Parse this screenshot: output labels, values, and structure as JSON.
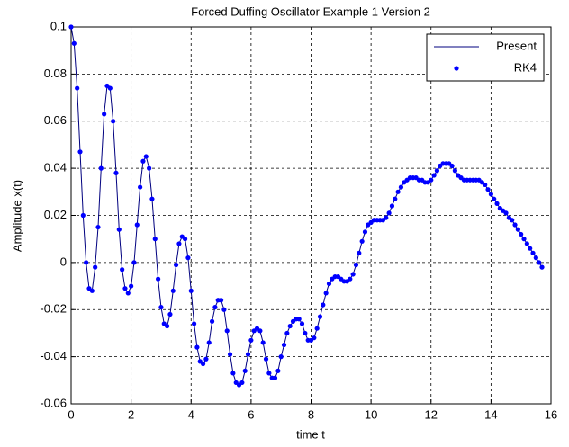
{
  "chart_data": {
    "type": "line",
    "title": "Forced Duffing Oscillator Example 1 Version 2",
    "xlabel": "time t",
    "ylabel": "Amplitude x(t)",
    "x": [
      0,
      0.1,
      0.2,
      0.3,
      0.4,
      0.5,
      0.6,
      0.7,
      0.8,
      0.9,
      1,
      1.1,
      1.2,
      1.3,
      1.4,
      1.5,
      1.6,
      1.7,
      1.8,
      1.9,
      2,
      2.1,
      2.2,
      2.3,
      2.4,
      2.5,
      2.6,
      2.7,
      2.8,
      2.9,
      3,
      3.1,
      3.2,
      3.3,
      3.4,
      3.5,
      3.6,
      3.7,
      3.8,
      3.9,
      4,
      4.1,
      4.2,
      4.3,
      4.4,
      4.5,
      4.6,
      4.7,
      4.8,
      4.9,
      5,
      5.1,
      5.2,
      5.3,
      5.4,
      5.5,
      5.6,
      5.7,
      5.8,
      5.9,
      6,
      6.1,
      6.2,
      6.3,
      6.4,
      6.5,
      6.6,
      6.7,
      6.8,
      6.9,
      7,
      7.1,
      7.2,
      7.3,
      7.4,
      7.5,
      7.6,
      7.7,
      7.8,
      7.9,
      8,
      8.1,
      8.2,
      8.3,
      8.4,
      8.5,
      8.6,
      8.7,
      8.8,
      8.9,
      9,
      9.1,
      9.2,
      9.3,
      9.4,
      9.5,
      9.6,
      9.7,
      9.8,
      9.9,
      10,
      10.1,
      10.2,
      10.3,
      10.4,
      10.5,
      10.6,
      10.7,
      10.8,
      10.9,
      11,
      11.1,
      11.2,
      11.3,
      11.4,
      11.5,
      11.6,
      11.7,
      11.8,
      11.9,
      12,
      12.1,
      12.2,
      12.3,
      12.4,
      12.5,
      12.6,
      12.7,
      12.8,
      12.9,
      13,
      13.1,
      13.2,
      13.3,
      13.4,
      13.5,
      13.6,
      13.7,
      13.8,
      13.9,
      14,
      14.1,
      14.2,
      14.3,
      14.4,
      14.5,
      14.6,
      14.7,
      14.8,
      14.9,
      15,
      15.1,
      15.2,
      15.3,
      15.4,
      15.5,
      15.6,
      15.7
    ],
    "series": [
      {
        "name": "Present",
        "color": "#00007f",
        "mode": "line",
        "values": [
          0.1,
          0.093,
          0.074,
          0.047,
          0.02,
          0.0,
          -0.011,
          -0.012,
          -0.002,
          0.015,
          0.04,
          0.063,
          0.075,
          0.074,
          0.06,
          0.038,
          0.014,
          -0.003,
          -0.011,
          -0.013,
          -0.01,
          0.0,
          0.016,
          0.032,
          0.043,
          0.045,
          0.04,
          0.027,
          0.01,
          -0.007,
          -0.019,
          -0.026,
          -0.027,
          -0.022,
          -0.012,
          -0.001,
          0.008,
          0.011,
          0.01,
          0.002,
          -0.012,
          -0.026,
          -0.036,
          -0.042,
          -0.043,
          -0.041,
          -0.034,
          -0.025,
          -0.019,
          -0.016,
          -0.016,
          -0.02,
          -0.029,
          -0.039,
          -0.047,
          -0.051,
          -0.052,
          -0.051,
          -0.046,
          -0.039,
          -0.033,
          -0.029,
          -0.028,
          -0.029,
          -0.034,
          -0.041,
          -0.047,
          -0.049,
          -0.049,
          -0.046,
          -0.04,
          -0.035,
          -0.03,
          -0.027,
          -0.025,
          -0.024,
          -0.024,
          -0.026,
          -0.03,
          -0.033,
          -0.033,
          -0.032,
          -0.028,
          -0.023,
          -0.018,
          -0.013,
          -0.009,
          -0.007,
          -0.006,
          -0.006,
          -0.007,
          -0.008,
          -0.008,
          -0.007,
          -0.005,
          -0.001,
          0.004,
          0.009,
          0.013,
          0.016,
          0.017,
          0.018,
          0.018,
          0.018,
          0.018,
          0.019,
          0.021,
          0.024,
          0.027,
          0.03,
          0.032,
          0.034,
          0.035,
          0.036,
          0.036,
          0.036,
          0.035,
          0.035,
          0.034,
          0.034,
          0.035,
          0.037,
          0.039,
          0.041,
          0.042,
          0.042,
          0.042,
          0.041,
          0.039,
          0.037,
          0.036,
          0.035,
          0.035,
          0.035,
          0.035,
          0.035,
          0.035,
          0.034,
          0.033,
          0.031,
          0.029,
          0.027,
          0.025,
          0.023,
          0.022,
          0.021,
          0.019,
          0.018,
          0.016,
          0.014,
          0.012,
          0.01,
          0.008,
          0.006,
          0.004,
          0.002,
          0.0,
          -0.002
        ]
      },
      {
        "name": "RK4",
        "color": "#0000ff",
        "mode": "markers",
        "values": [
          0.1,
          0.093,
          0.074,
          0.047,
          0.02,
          0.0,
          -0.011,
          -0.012,
          -0.002,
          0.015,
          0.04,
          0.063,
          0.075,
          0.074,
          0.06,
          0.038,
          0.014,
          -0.003,
          -0.011,
          -0.013,
          -0.01,
          0.0,
          0.016,
          0.032,
          0.043,
          0.045,
          0.04,
          0.027,
          0.01,
          -0.007,
          -0.019,
          -0.026,
          -0.027,
          -0.022,
          -0.012,
          -0.001,
          0.008,
          0.011,
          0.01,
          0.002,
          -0.012,
          -0.026,
          -0.036,
          -0.042,
          -0.043,
          -0.041,
          -0.034,
          -0.025,
          -0.019,
          -0.016,
          -0.016,
          -0.02,
          -0.029,
          -0.039,
          -0.047,
          -0.051,
          -0.052,
          -0.051,
          -0.046,
          -0.039,
          -0.033,
          -0.029,
          -0.028,
          -0.029,
          -0.034,
          -0.041,
          -0.047,
          -0.049,
          -0.049,
          -0.046,
          -0.04,
          -0.035,
          -0.03,
          -0.027,
          -0.025,
          -0.024,
          -0.024,
          -0.026,
          -0.03,
          -0.033,
          -0.033,
          -0.032,
          -0.028,
          -0.023,
          -0.018,
          -0.013,
          -0.009,
          -0.007,
          -0.006,
          -0.006,
          -0.007,
          -0.008,
          -0.008,
          -0.007,
          -0.005,
          -0.001,
          0.004,
          0.009,
          0.013,
          0.016,
          0.017,
          0.018,
          0.018,
          0.018,
          0.018,
          0.019,
          0.021,
          0.024,
          0.027,
          0.03,
          0.032,
          0.034,
          0.035,
          0.036,
          0.036,
          0.036,
          0.035,
          0.035,
          0.034,
          0.034,
          0.035,
          0.037,
          0.039,
          0.041,
          0.042,
          0.042,
          0.042,
          0.041,
          0.039,
          0.037,
          0.036,
          0.035,
          0.035,
          0.035,
          0.035,
          0.035,
          0.035,
          0.034,
          0.033,
          0.031,
          0.029,
          0.027,
          0.025,
          0.023,
          0.022,
          0.021,
          0.019,
          0.018,
          0.016,
          0.014,
          0.012,
          0.01,
          0.008,
          0.006,
          0.004,
          0.002,
          0.0,
          -0.002
        ]
      }
    ],
    "xlim": [
      0,
      16
    ],
    "xticks": [
      0,
      2,
      4,
      6,
      8,
      10,
      12,
      14,
      16
    ],
    "ylim": [
      -0.06,
      0.1
    ],
    "yticks": [
      -0.06,
      -0.04,
      -0.02,
      0,
      0.02,
      0.04,
      0.06,
      0.08,
      0.1
    ],
    "grid": true,
    "legend": "upper right"
  }
}
